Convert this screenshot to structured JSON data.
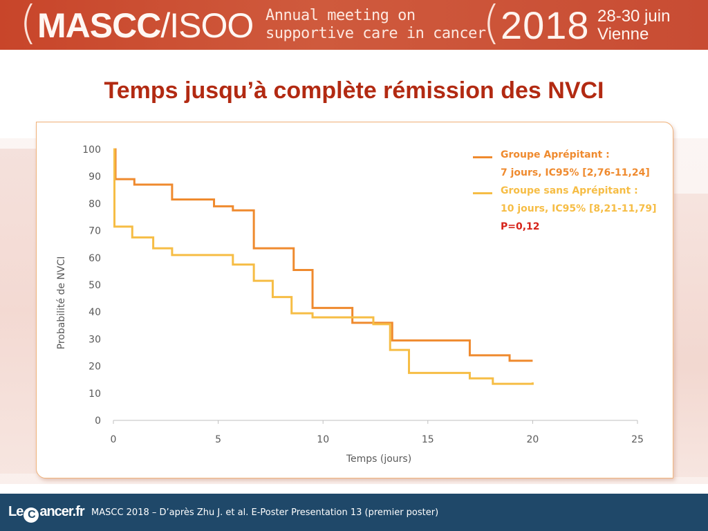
{
  "banner": {
    "org_bold": "MASCC",
    "org_thin": "/ISOO",
    "subtitle_line1": "Annual meeting on",
    "subtitle_line2": "supportive care in cancer",
    "year": "2018",
    "dates": "28-30 juin",
    "city": "Vienne"
  },
  "slide_title": "Temps jusqu’à complète rémission des NVCI",
  "colors": {
    "title": "#b22a12",
    "series_a": "#ef8a2e",
    "series_b": "#f6bd45",
    "p_value": "#d6231a",
    "footer_bg": "#1f4869"
  },
  "chart_data": {
    "type": "line",
    "step": true,
    "xlabel": "Temps (jours)",
    "ylabel": "Probabilité de NVCI",
    "xlim": [
      0,
      25
    ],
    "ylim": [
      0,
      100
    ],
    "x_ticks": [
      "0",
      "5",
      "10",
      "15",
      "20",
      "25"
    ],
    "y_ticks": [
      "0",
      "10",
      "20",
      "30",
      "40",
      "50",
      "60",
      "70",
      "80",
      "90",
      "100"
    ],
    "grid": false,
    "legend_position": "top-right",
    "series": [
      {
        "name": "Groupe Aprépitant :",
        "detail": "7 jours, IC95% [2,76-11,24]",
        "color": "#ef8a2e",
        "x": [
          0,
          0.1,
          1.0,
          2.8,
          4.8,
          5.7,
          6.7,
          8.6,
          9.5,
          11.4,
          13.3,
          17.0,
          18.9,
          20
        ],
        "y": [
          100,
          89,
          87,
          81.5,
          79,
          77.5,
          63.5,
          55.5,
          41.5,
          36,
          29.5,
          24,
          22,
          22
        ]
      },
      {
        "name": "Groupe sans Aprépitant :",
        "detail": "10 jours, IC95% [8,21-11,79]",
        "color": "#f6bd45",
        "x": [
          0,
          0.05,
          0.9,
          1.9,
          2.8,
          5.7,
          6.7,
          7.6,
          8.5,
          9.5,
          12.4,
          13.2,
          14.1,
          17.0,
          18.1,
          20
        ],
        "y": [
          100,
          71.5,
          67.5,
          63.5,
          61,
          57.5,
          51.5,
          45.5,
          39.5,
          38,
          35.5,
          26,
          17.5,
          15.5,
          13.5,
          14
        ]
      }
    ],
    "annotation": "P=0,12"
  },
  "footer": {
    "logo_pre": "Le",
    "logo_c": "C",
    "logo_post": "ancer.fr",
    "text": "MASCC 2018 – D’après Zhu J. et al. E-Poster Presentation 13 (premier poster)"
  }
}
